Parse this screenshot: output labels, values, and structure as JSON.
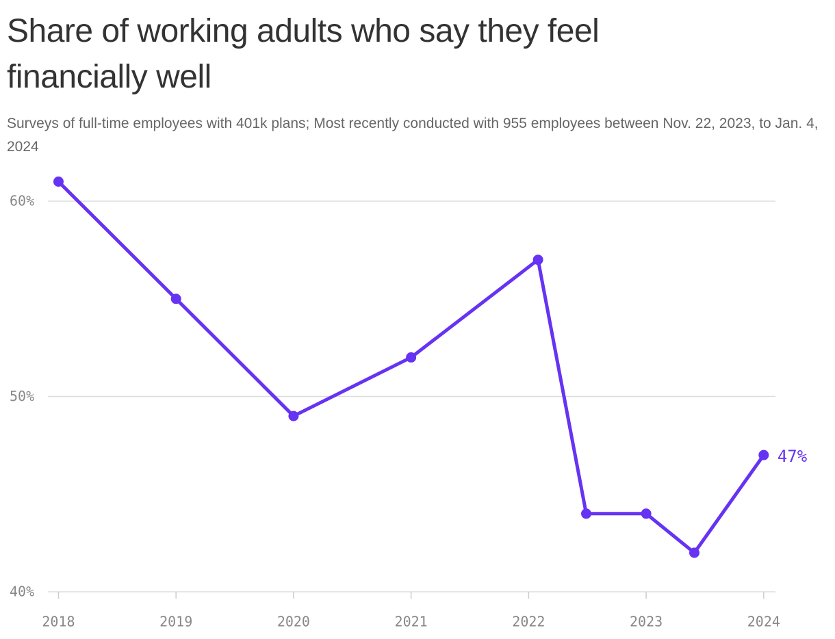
{
  "chart_data": {
    "type": "line",
    "title": "Share of working adults who say they feel financially well",
    "subtitle": "Surveys of full-time employees with 401k plans; Most recently conducted with 955 employees between Nov. 22, 2023, to Jan. 4, 2024",
    "x": [
      2018,
      2019,
      2020,
      2021,
      2022.08,
      2022.49,
      2023,
      2023.41,
      2024
    ],
    "series": [
      {
        "color": "#6633f2",
        "values": [
          61,
          55,
          49,
          52,
          57,
          44,
          44,
          42,
          47
        ],
        "value_labels": [
          null,
          null,
          null,
          null,
          null,
          null,
          null,
          null,
          "47%"
        ]
      }
    ],
    "xlim": [
      2017.91,
      2024.1
    ],
    "xticks": [
      2018,
      2019,
      2020,
      2021,
      2022,
      2023,
      2024
    ],
    "ylim": [
      40,
      61
    ],
    "yticks": [
      {
        "value": 40,
        "label": "40%"
      },
      {
        "value": 50,
        "label": "50%"
      },
      {
        "value": 60,
        "label": "60%"
      }
    ],
    "grid": true
  }
}
